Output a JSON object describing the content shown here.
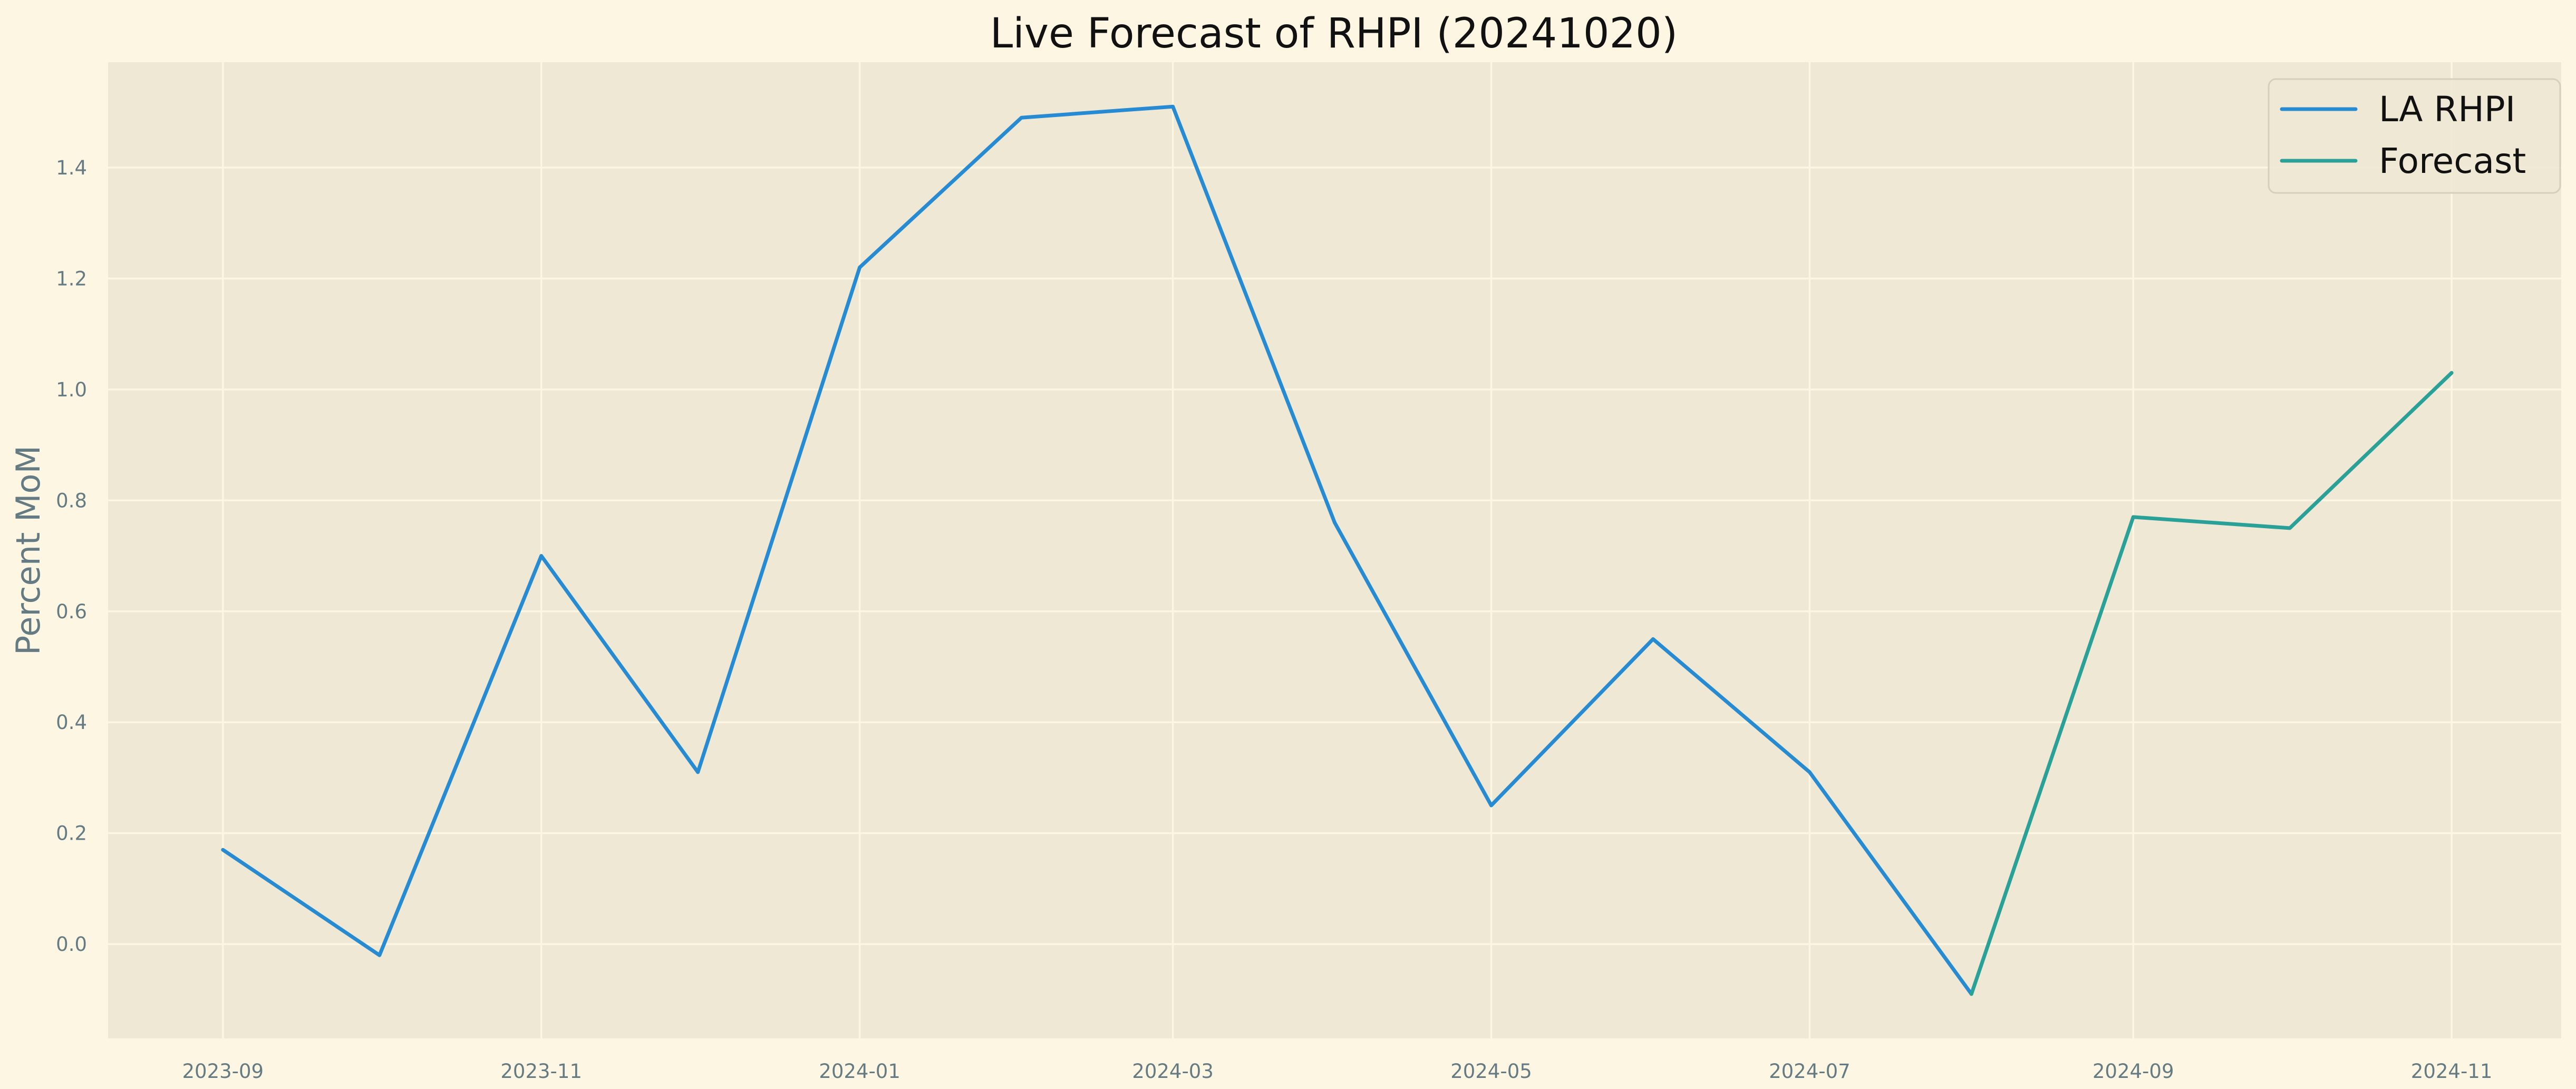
{
  "chart_data": {
    "type": "line",
    "title": "Live Forecast of RHPI (20241020)",
    "xlabel": "",
    "ylabel": "Percent MoM",
    "x_ticks": [
      "2023-09",
      "2023-11",
      "2024-01",
      "2024-03",
      "2024-05",
      "2024-07",
      "2024-09",
      "2024-11"
    ],
    "y_ticks": [
      "0.0",
      "0.2",
      "0.4",
      "0.6",
      "0.8",
      "1.0",
      "1.2",
      "1.4"
    ],
    "xlim": [
      "2023-08-10",
      "2024-11-22"
    ],
    "ylim": [
      -0.17,
      1.59
    ],
    "grid": true,
    "legend_position": "top-right",
    "series": [
      {
        "name": "LA RHPI",
        "color": "#268bd2",
        "points": [
          {
            "x": "2023-09-01",
            "y": 0.17
          },
          {
            "x": "2023-10-01",
            "y": -0.02
          },
          {
            "x": "2023-11-01",
            "y": 0.7
          },
          {
            "x": "2023-12-01",
            "y": 0.31
          },
          {
            "x": "2024-01-01",
            "y": 1.22
          },
          {
            "x": "2024-02-01",
            "y": 1.49
          },
          {
            "x": "2024-03-01",
            "y": 1.51
          },
          {
            "x": "2024-04-01",
            "y": 0.76
          },
          {
            "x": "2024-05-01",
            "y": 0.25
          },
          {
            "x": "2024-06-01",
            "y": 0.55
          },
          {
            "x": "2024-07-01",
            "y": 0.31
          },
          {
            "x": "2024-08-01",
            "y": -0.09
          }
        ]
      },
      {
        "name": "Forecast",
        "color": "#2aa198",
        "points": [
          {
            "x": "2024-08-01",
            "y": -0.09
          },
          {
            "x": "2024-09-01",
            "y": 0.77
          },
          {
            "x": "2024-10-01",
            "y": 0.75
          },
          {
            "x": "2024-11-01",
            "y": 1.03
          }
        ]
      }
    ]
  }
}
